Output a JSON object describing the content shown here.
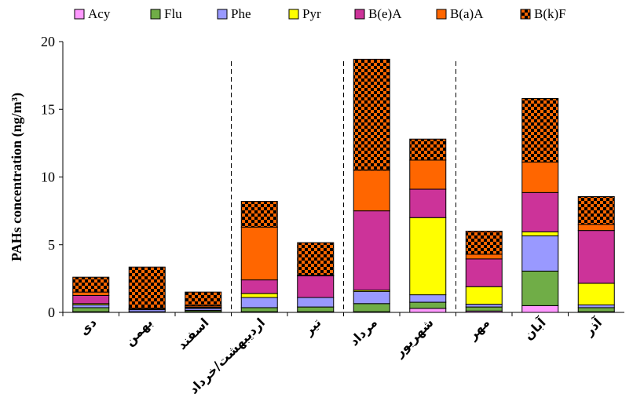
{
  "chart_data": {
    "type": "bar",
    "stacked": true,
    "categories": [
      "دی",
      "بهمن",
      "اسفند",
      "اردیبهشت/خرداد",
      "تیر",
      "مرداد",
      "شهریور",
      "مهر",
      "آبان",
      "آذر"
    ],
    "series": [
      {
        "name": "Acy",
        "color": "#ff99ff",
        "pattern": "solid",
        "values": [
          0.05,
          0.0,
          0.05,
          0.05,
          0.05,
          0.05,
          0.3,
          0.1,
          0.5,
          0.05
        ]
      },
      {
        "name": "Flu",
        "color": "#70ad47",
        "pattern": "solid",
        "values": [
          0.3,
          0.05,
          0.1,
          0.3,
          0.35,
          0.6,
          0.45,
          0.3,
          2.55,
          0.3
        ]
      },
      {
        "name": "Phe",
        "color": "#9999ff",
        "pattern": "solid",
        "values": [
          0.2,
          0.15,
          0.15,
          0.75,
          0.7,
          0.9,
          0.55,
          0.2,
          2.6,
          0.2
        ]
      },
      {
        "name": "Pyr",
        "color": "#ffff00",
        "pattern": "solid",
        "values": [
          0.1,
          0.05,
          0.05,
          0.3,
          0.0,
          0.1,
          5.7,
          1.3,
          0.3,
          1.6
        ]
      },
      {
        "name": "B(e)A",
        "color": "#cc3399",
        "pattern": "solid",
        "values": [
          0.6,
          0.05,
          0.05,
          1.0,
          1.6,
          5.85,
          2.1,
          2.05,
          2.9,
          3.9
        ]
      },
      {
        "name": "B(a)A",
        "color": "#ff6600",
        "pattern": "solid",
        "values": [
          0.25,
          0.0,
          0.1,
          3.9,
          0.05,
          3.0,
          2.15,
          0.35,
          2.25,
          0.45
        ]
      },
      {
        "name": "B(k)F",
        "color": "#ff6600",
        "pattern": "checker",
        "values": [
          1.1,
          3.05,
          1.0,
          1.9,
          2.4,
          8.2,
          1.55,
          1.7,
          4.7,
          2.05
        ]
      }
    ],
    "ylabel": "PAHs concentration (ng/m³)",
    "yticks": [
      0,
      5,
      10,
      15,
      20
    ],
    "ylim": [
      0,
      20
    ],
    "separators_after_category_index": [
      2,
      4,
      6
    ],
    "legend": "top",
    "grid": false
  }
}
